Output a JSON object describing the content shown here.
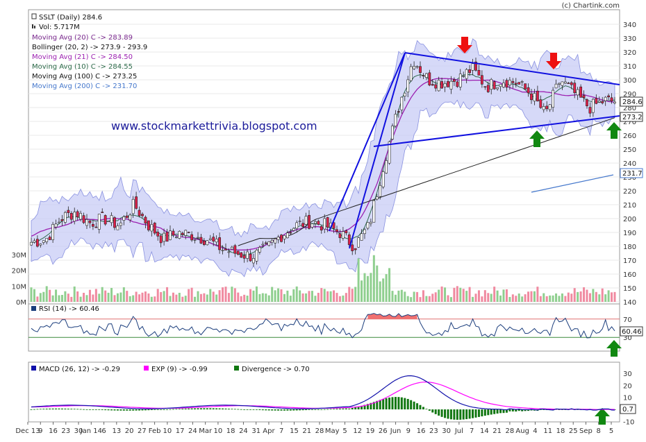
{
  "copyright": "(c) Chartink.com",
  "watermark_url": "www.stockmarkettrivia.blogspot.com",
  "legend": {
    "title": "SSLT (Daily) 284.6",
    "vol": "Vol: 5.717M",
    "ma20": "Moving Avg (20) C -> 283.89",
    "bollinger": "Bollinger (20, 2) -> 273.9 - 293.9",
    "ma21": "Moving Avg (21) C -> 284.50",
    "ma10": "Moving Avg (10) C -> 284.55",
    "ma100": "Moving Avg (100) C -> 273.25",
    "ma200": "Moving Avg (200) C -> 231.70"
  },
  "rsi_label": "RSI (14) -> 60.46",
  "macd_labels": {
    "macd": "MACD (26, 12) -> -0.29",
    "exp": "EXP (9) -> -0.99",
    "div": "Divergence -> 0.70"
  },
  "price_axis_ticks": [
    "340",
    "330",
    "320",
    "310",
    "300",
    "290",
    "280",
    "270",
    "260",
    "250",
    "240",
    "230",
    "220",
    "210",
    "200",
    "190",
    "180",
    "170",
    "160",
    "150",
    "140"
  ],
  "volume_axis_ticks": [
    "30M",
    "20M",
    "10M",
    "0M"
  ],
  "rsi_axis_ticks": [
    "70",
    "30"
  ],
  "macd_axis_ticks": [
    "30",
    "20",
    "10",
    "0",
    "-10"
  ],
  "value_flags": {
    "last_price": "284.6",
    "ma100": "273.2",
    "ma200": "231.7",
    "rsi": "60.46",
    "macd": "0.7"
  },
  "x_axis_labels": [
    "Dec 13",
    "9",
    "16",
    "23",
    "30",
    "Jan 14",
    "6",
    "13",
    "20",
    "27",
    "Feb",
    "10",
    "17",
    "24",
    "Mar",
    "10",
    "18",
    "24",
    "31",
    "Apr",
    "7",
    "15",
    "21",
    "28",
    "May",
    "5",
    "12",
    "19",
    "26",
    "Jun",
    "9",
    "16",
    "23",
    "30",
    "Jul",
    "7",
    "14",
    "21",
    "28",
    "Aug",
    "4",
    "11",
    "18",
    "25",
    "Sep",
    "8",
    "5"
  ],
  "colors": {
    "up_candle": "#ffffff",
    "down_candle": "#e0204a",
    "bollinger_fill": "#c8ccf5",
    "trendline": "#1010e0",
    "ma100": "#222222",
    "ma200": "#4477cc",
    "rsi_fill": "#f07070",
    "macd": "#1010aa",
    "exp": "#ff00ff",
    "divergence": "#117711",
    "arrow_down": "#ee1111",
    "arrow_up": "#118811"
  },
  "chart_data": {
    "type": "candlestick",
    "title": "SSLT (Daily) 284.6",
    "x_range": [
      "2013-12-02",
      "2014-09-06"
    ],
    "price_ylim": [
      140,
      345
    ],
    "close_series": [
      {
        "date": "2013-12-02",
        "close": 183
      },
      {
        "date": "2013-12-09",
        "close": 185
      },
      {
        "date": "2013-12-16",
        "close": 200
      },
      {
        "date": "2013-12-23",
        "close": 205
      },
      {
        "date": "2013-12-30",
        "close": 197
      },
      {
        "date": "2014-01-06",
        "close": 200
      },
      {
        "date": "2014-01-13",
        "close": 195
      },
      {
        "date": "2014-01-20",
        "close": 210
      },
      {
        "date": "2014-01-27",
        "close": 195
      },
      {
        "date": "2014-02-03",
        "close": 185
      },
      {
        "date": "2014-02-10",
        "close": 190
      },
      {
        "date": "2014-02-17",
        "close": 188
      },
      {
        "date": "2014-02-24",
        "close": 185
      },
      {
        "date": "2014-03-03",
        "close": 178
      },
      {
        "date": "2014-03-10",
        "close": 175
      },
      {
        "date": "2014-03-17",
        "close": 173
      },
      {
        "date": "2014-03-24",
        "close": 178
      },
      {
        "date": "2014-03-31",
        "close": 188
      },
      {
        "date": "2014-04-07",
        "close": 195
      },
      {
        "date": "2014-04-14",
        "close": 198
      },
      {
        "date": "2014-04-21",
        "close": 195
      },
      {
        "date": "2014-04-28",
        "close": 190
      },
      {
        "date": "2014-05-05",
        "close": 180
      },
      {
        "date": "2014-05-12",
        "close": 195
      },
      {
        "date": "2014-05-19",
        "close": 240
      },
      {
        "date": "2014-05-26",
        "close": 280
      },
      {
        "date": "2014-06-02",
        "close": 315
      },
      {
        "date": "2014-06-09",
        "close": 300
      },
      {
        "date": "2014-06-16",
        "close": 298
      },
      {
        "date": "2014-06-23",
        "close": 300
      },
      {
        "date": "2014-06-30",
        "close": 308
      },
      {
        "date": "2014-07-07",
        "close": 295
      },
      {
        "date": "2014-07-14",
        "close": 300
      },
      {
        "date": "2014-07-21",
        "close": 298
      },
      {
        "date": "2014-07-28",
        "close": 290
      },
      {
        "date": "2014-08-04",
        "close": 275
      },
      {
        "date": "2014-08-11",
        "close": 300
      },
      {
        "date": "2014-08-18",
        "close": 290
      },
      {
        "date": "2014-08-25",
        "close": 280
      },
      {
        "date": "2014-09-01",
        "close": 285
      },
      {
        "date": "2014-09-05",
        "close": 284.6
      }
    ],
    "indicators": {
      "ma20": 283.89,
      "bollinger_low": 273.9,
      "bollinger_high": 293.9,
      "ma21": 284.5,
      "ma10": 284.55,
      "ma100": 273.25,
      "ma200": 231.7,
      "volume_last_m": 5.717,
      "rsi": 60.46,
      "macd": -0.29,
      "exp": -0.99,
      "divergence": 0.7
    },
    "volume_ylim_m": [
      0,
      35
    ],
    "rsi_ylim": [
      0,
      100
    ],
    "macd_ylim": [
      -10,
      35
    ]
  }
}
